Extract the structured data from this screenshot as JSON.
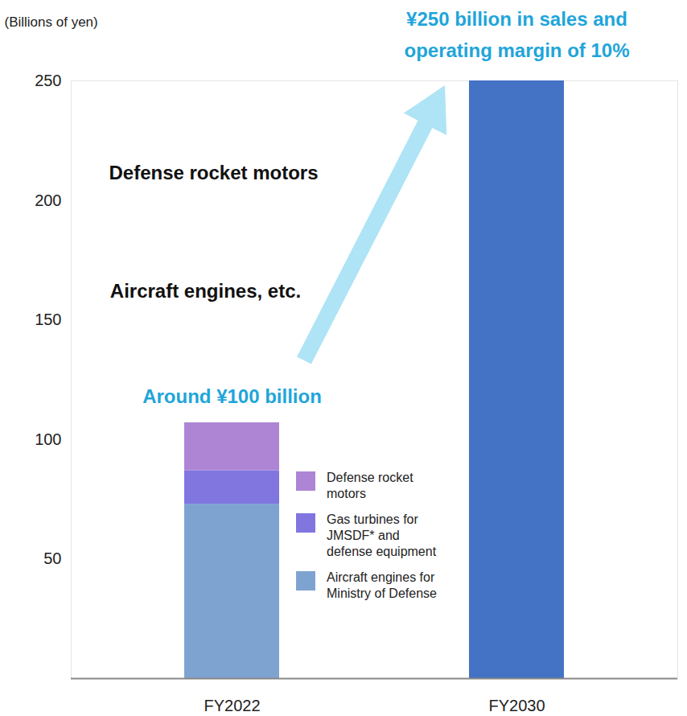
{
  "chart_data": {
    "type": "bar",
    "y_label": "(Billions of yen)",
    "categories": [
      "FY2022",
      "FY2030"
    ],
    "series": [
      {
        "name": "Defense rocket motors",
        "color": "#ad85d4",
        "values": [
          20,
          null
        ]
      },
      {
        "name": "Gas turbines for JMSDF* and defense equipment",
        "color": "#8175e0",
        "values": [
          14,
          null
        ]
      },
      {
        "name": "Aircraft engines for Ministry of Defense",
        "color": "#7fa3d1",
        "values": [
          73,
          null
        ]
      },
      {
        "name": null,
        "color": "#4472c4",
        "values": [
          null,
          250
        ]
      }
    ],
    "ylim": [
      0,
      250
    ],
    "yticks": [
      50,
      100,
      150,
      200,
      250
    ],
    "stacked": true,
    "annotations": [
      "Around ¥100 billion",
      "¥250 billion in sales and\noperating margin of 10%",
      "Defense rocket motors",
      "Aircraft engines, etc."
    ]
  }
}
